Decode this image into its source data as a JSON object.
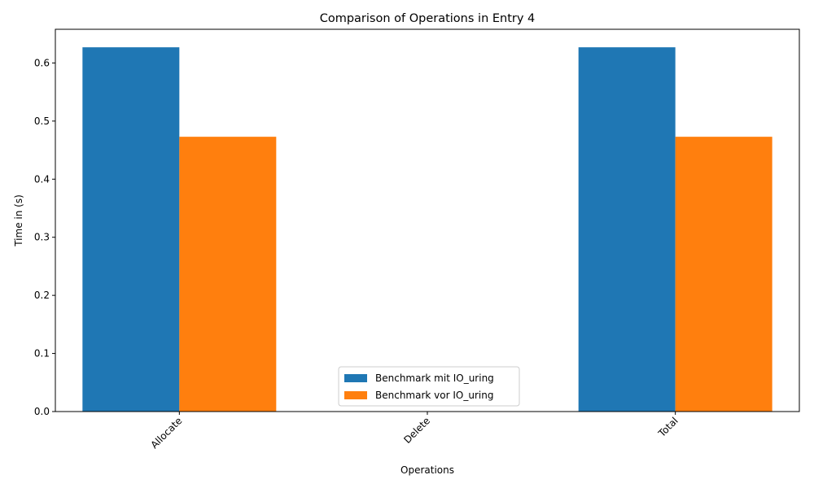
{
  "chart_data": {
    "type": "bar",
    "title": "Comparison of Operations in Entry 4",
    "xlabel": "Operations",
    "ylabel": "Time in (s)",
    "categories": [
      "Allocate",
      "Delete",
      "Total"
    ],
    "series": [
      {
        "name": "Benchmark mit IO_uring",
        "color": "#1f77b4",
        "values": [
          0.627,
          0.0,
          0.627
        ]
      },
      {
        "name": "Benchmark vor IO_uring",
        "color": "#ff7f0e",
        "values": [
          0.473,
          0.0,
          0.473
        ]
      }
    ],
    "ylim": [
      0,
      0.658
    ],
    "yticks": [
      "0.0",
      "0.1",
      "0.2",
      "0.3",
      "0.4",
      "0.5",
      "0.6"
    ],
    "grid": false,
    "legend_position": "bottom-center"
  }
}
